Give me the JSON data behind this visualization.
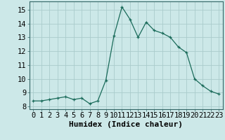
{
  "x": [
    0,
    1,
    2,
    3,
    4,
    5,
    6,
    7,
    8,
    9,
    10,
    11,
    12,
    13,
    14,
    15,
    16,
    17,
    18,
    19,
    20,
    21,
    22,
    23
  ],
  "y": [
    8.4,
    8.4,
    8.5,
    8.6,
    8.7,
    8.5,
    8.6,
    8.2,
    8.4,
    9.9,
    13.1,
    15.2,
    14.3,
    13.0,
    14.1,
    13.5,
    13.3,
    13.0,
    12.3,
    11.9,
    10.0,
    9.5,
    9.1,
    8.9
  ],
  "line_color": "#1a6b5a",
  "marker": "+",
  "marker_size": 3,
  "xlabel": "Humidex (Indice chaleur)",
  "xlim": [
    -0.5,
    23.5
  ],
  "ylim": [
    7.8,
    15.6
  ],
  "yticks": [
    8,
    9,
    10,
    11,
    12,
    13,
    14,
    15
  ],
  "xticks": [
    0,
    1,
    2,
    3,
    4,
    5,
    6,
    7,
    8,
    9,
    10,
    11,
    12,
    13,
    14,
    15,
    16,
    17,
    18,
    19,
    20,
    21,
    22,
    23
  ],
  "background_color": "#cce8e8",
  "grid_color": "#aacccc",
  "tick_fontsize": 7.5,
  "xlabel_fontsize": 8
}
